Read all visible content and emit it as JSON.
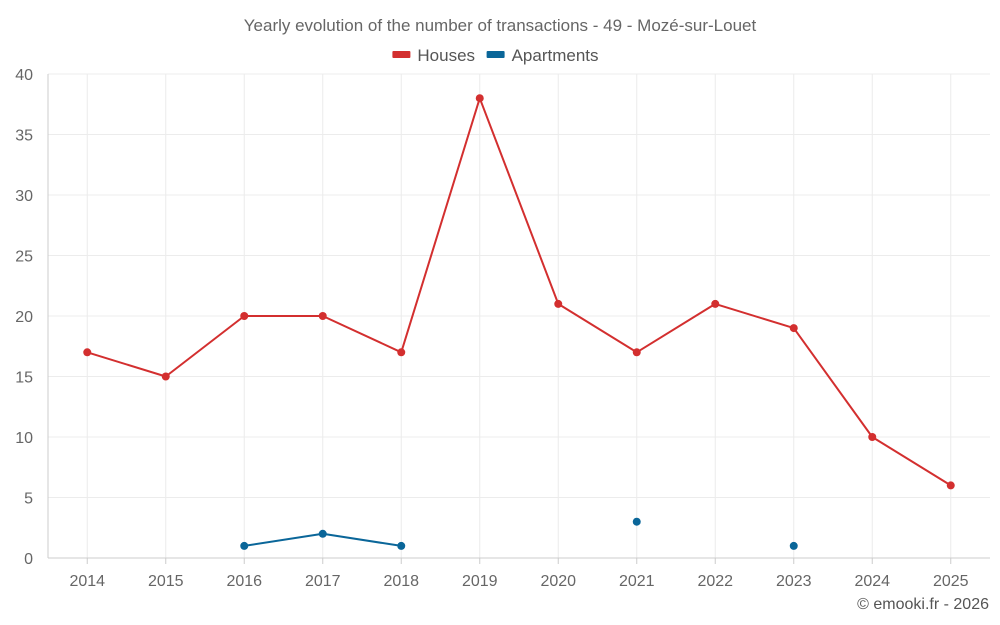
{
  "chart_data": {
    "type": "line",
    "title": "Yearly evolution of the number of transactions - 49 - Mozé-sur-Louet",
    "categories": [
      "2014",
      "2015",
      "2016",
      "2017",
      "2018",
      "2019",
      "2020",
      "2021",
      "2022",
      "2023",
      "2024",
      "2025"
    ],
    "ylim": [
      0,
      40
    ],
    "yticks": [
      0,
      5,
      10,
      15,
      20,
      25,
      30,
      35,
      40
    ],
    "grid": true,
    "legend_position": "top-center",
    "series": [
      {
        "name": "Houses",
        "color": "#d32f2f",
        "values": [
          17,
          15,
          20,
          20,
          17,
          38,
          21,
          17,
          21,
          19,
          10,
          6
        ]
      },
      {
        "name": "Apartments",
        "color": "#0a6699",
        "values": [
          null,
          null,
          1,
          2,
          1,
          null,
          null,
          3,
          null,
          1,
          null,
          null
        ]
      }
    ],
    "xlabel": "",
    "ylabel": ""
  },
  "credit": "© emooki.fr - 2026"
}
